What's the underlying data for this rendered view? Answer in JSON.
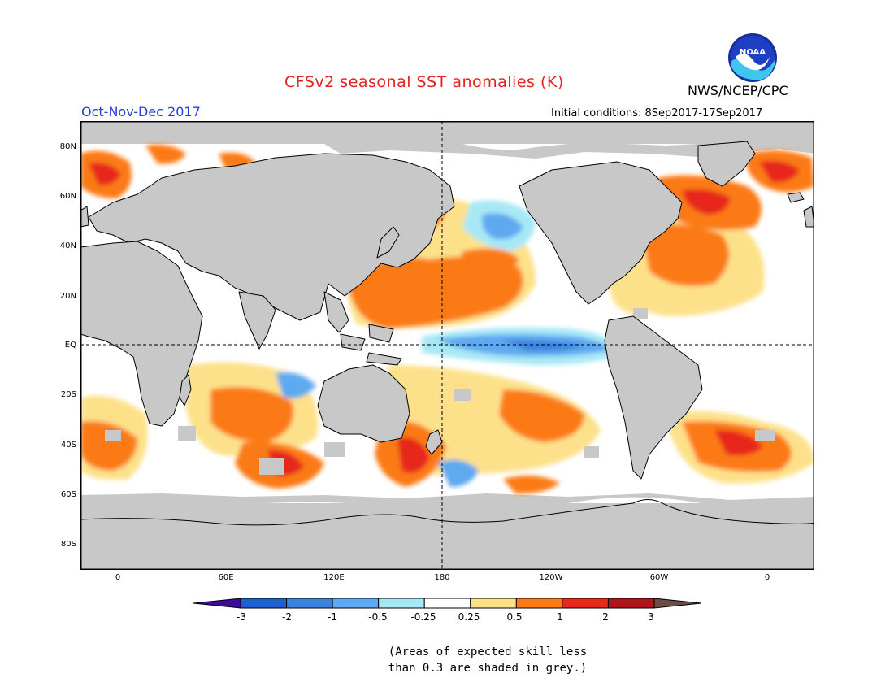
{
  "title": "CFSv2 seasonal SST anomalies (K)",
  "agency": "NWS/NCEP/CPC",
  "season": "Oct-Nov-Dec 2017",
  "initial_conditions": "Initial conditions: 8Sep2017-17Sep2017",
  "logo_text": "NOAA",
  "lat_labels": [
    "80N",
    "60N",
    "40N",
    "20N",
    "EQ",
    "20S",
    "40S",
    "60S",
    "80S"
  ],
  "lon_labels": [
    "0",
    "60E",
    "120E",
    "180",
    "120W",
    "60W",
    "0"
  ],
  "colorbar": {
    "labels": [
      "-3",
      "-2",
      "-1",
      "-0.5",
      "-0.25",
      "0.25",
      "0.5",
      "1",
      "2",
      "3"
    ],
    "colors": [
      "#3c0a9c",
      "#1f5fcf",
      "#3b82e0",
      "#5ea9f0",
      "#a8e8f6",
      "#ffffff",
      "#fde18a",
      "#fb7a14",
      "#e7281c",
      "#b0141a",
      "#6d4c41"
    ]
  },
  "note": "(Areas of expected skill less\nthan 0.3 are shaded in grey.)",
  "colors": {
    "land": "#c8c8c8",
    "ocean_neutral": "#ffffff",
    "title": "#e8201c",
    "season": "#2a3fd6"
  }
}
